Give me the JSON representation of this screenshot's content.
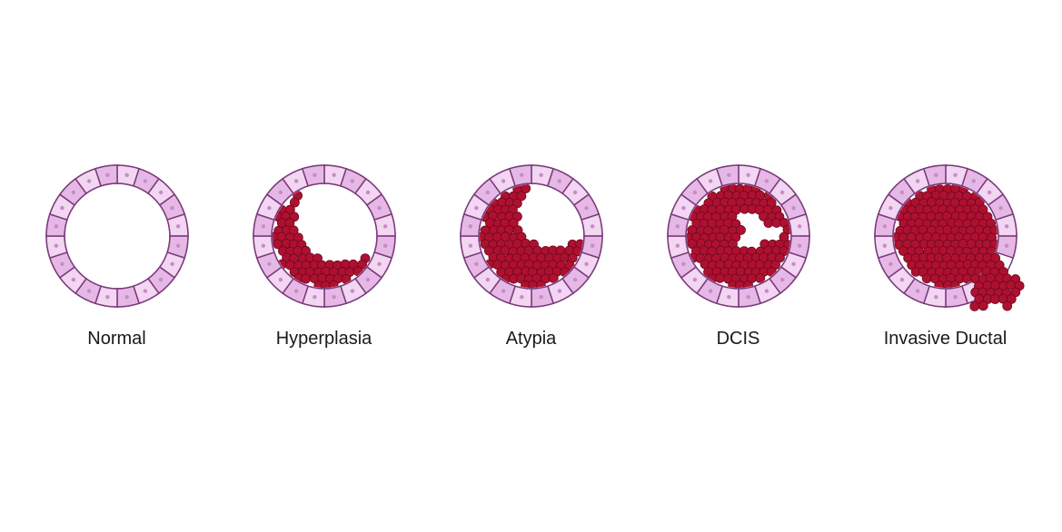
{
  "diagram": {
    "type": "infographic",
    "background_color": "#ffffff",
    "label_fontsize": 20,
    "label_color": "#1a1a1a",
    "duct": {
      "outer_radius": 78,
      "inner_radius": 58,
      "n_wall_cells": 20,
      "wall_fill_outer": "#e6b8e6",
      "wall_fill_inner": "#f2d6f2",
      "wall_stroke": "#7a3a7a",
      "wall_stroke_width": 1.5,
      "nucleus_color": "#c98ac9",
      "nucleus_radius": 2.2
    },
    "tumor": {
      "cell_fill": "#b01030",
      "cell_stroke": "#6a0a20",
      "cell_stroke_width": 0.8,
      "cell_radius": 5
    },
    "stages": [
      {
        "key": "normal",
        "label": "Normal",
        "fill_mode": "none"
      },
      {
        "key": "hyper",
        "label": "Hyperplasia",
        "fill_mode": "crescent_small"
      },
      {
        "key": "atypia",
        "label": "Atypia",
        "fill_mode": "crescent_large"
      },
      {
        "key": "dcis",
        "label": "DCIS",
        "fill_mode": "full_hole"
      },
      {
        "key": "invasive",
        "label": "Invasive Ductal",
        "fill_mode": "full_break"
      }
    ]
  }
}
